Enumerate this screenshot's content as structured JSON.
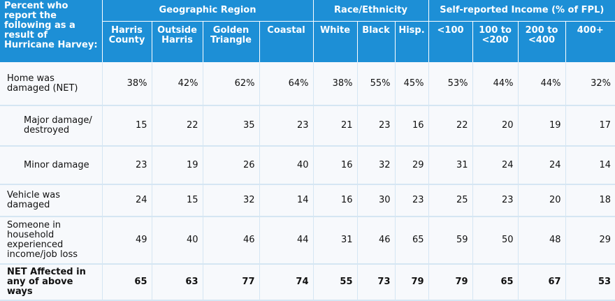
{
  "corner_label": [
    "Percent who",
    "report the",
    "following as a",
    "result of",
    "Hurricane Harvey:"
  ],
  "groups": [
    {
      "label": "Geographic Region",
      "span": 4
    },
    {
      "label": "Race/Ethnicity",
      "span": 3
    },
    {
      "label": "Self-reported Income (% of FPL)",
      "span": 4
    }
  ],
  "columns": [
    [
      "Harris",
      "County"
    ],
    [
      "Outside",
      "Harris"
    ],
    [
      "Golden",
      "Triangle"
    ],
    [
      "Coastal"
    ],
    [
      "White"
    ],
    [
      "Black"
    ],
    [
      "Hisp."
    ],
    [
      "<100"
    ],
    [
      "100 to",
      "<200"
    ],
    [
      "200 to",
      "<400"
    ],
    [
      "400+"
    ]
  ],
  "rows": [
    {
      "label": [
        "Home was",
        "damaged (NET)"
      ],
      "indent": false,
      "bold": false,
      "values": [
        "38%",
        "42%",
        "62%",
        "64%",
        "38%",
        "55%",
        "45%",
        "53%",
        "44%",
        "44%",
        "32%"
      ]
    },
    {
      "label": [
        "Major damage/",
        "destroyed"
      ],
      "indent": true,
      "bold": false,
      "values": [
        "15",
        "22",
        "35",
        "23",
        "21",
        "23",
        "16",
        "22",
        "20",
        "19",
        "17"
      ]
    },
    {
      "label": [
        "Minor damage"
      ],
      "indent": true,
      "bold": false,
      "values": [
        "23",
        "19",
        "26",
        "40",
        "16",
        "32",
        "29",
        "31",
        "24",
        "24",
        "14"
      ]
    },
    {
      "label": [
        "Vehicle was",
        "damaged"
      ],
      "indent": false,
      "bold": false,
      "values": [
        "24",
        "15",
        "32",
        "14",
        "16",
        "30",
        "23",
        "25",
        "23",
        "20",
        "18"
      ]
    },
    {
      "label": [
        "Someone in",
        "household",
        "experienced",
        "income/job loss"
      ],
      "indent": false,
      "bold": false,
      "values": [
        "49",
        "40",
        "46",
        "44",
        "31",
        "46",
        "65",
        "59",
        "50",
        "48",
        "29"
      ]
    },
    {
      "label": [
        "NET Affected in",
        "any of above",
        "ways"
      ],
      "indent": false,
      "bold": true,
      "values": [
        "65",
        "63",
        "77",
        "74",
        "55",
        "73",
        "79",
        "79",
        "65",
        "67",
        "53"
      ]
    }
  ]
}
